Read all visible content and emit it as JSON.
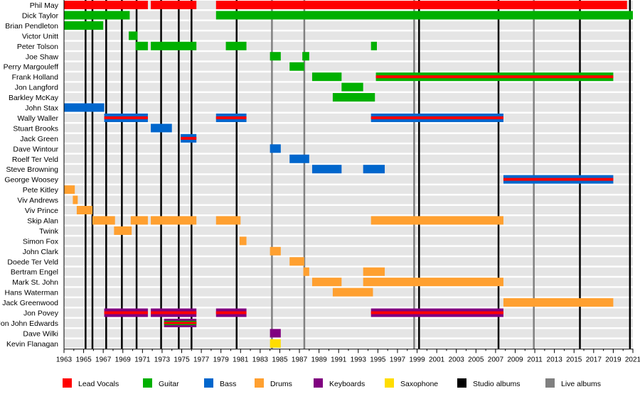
{
  "chart_data": {
    "type": "timeline",
    "xlim": [
      1963,
      2021
    ],
    "x_tick_labels": [
      1963,
      1965,
      1967,
      1969,
      1971,
      1973,
      1975,
      1977,
      1979,
      1981,
      1983,
      1985,
      1987,
      1989,
      1991,
      1993,
      1995,
      1997,
      1999,
      2001,
      2003,
      2005,
      2007,
      2009,
      2011,
      2013,
      2015,
      2017,
      2019,
      2021
    ],
    "colors": {
      "Lead Vocals": "#ff0000",
      "Guitar": "#00b000",
      "Bass": "#0066cc",
      "Drums": "#ffa030",
      "Keyboards": "#800080",
      "Saxophone": "#ffdd00",
      "Studio albums": "#000000",
      "Live albums": "#808080"
    },
    "legend": [
      "Lead Vocals",
      "Guitar",
      "Bass",
      "Drums",
      "Keyboards",
      "Saxophone",
      "Studio albums",
      "Live albums"
    ],
    "legend_position": "bottom",
    "members": [
      {
        "name": "Phil May",
        "spans": [
          {
            "start": 1963,
            "end": 1971.55,
            "roles": [
              "Lead Vocals"
            ]
          },
          {
            "start": 1971.85,
            "end": 1976.5,
            "roles": [
              "Lead Vocals"
            ]
          },
          {
            "start": 1978.5,
            "end": 2020.4,
            "roles": [
              "Lead Vocals"
            ]
          }
        ]
      },
      {
        "name": "Dick Taylor",
        "spans": [
          {
            "start": 1963,
            "end": 1969.7,
            "roles": [
              "Guitar"
            ]
          },
          {
            "start": 1978.5,
            "end": 2021,
            "roles": [
              "Guitar"
            ]
          }
        ]
      },
      {
        "name": "Brian Pendleton",
        "spans": [
          {
            "start": 1963,
            "end": 1967,
            "roles": [
              "Guitar"
            ]
          }
        ]
      },
      {
        "name": "Victor Unitt",
        "spans": [
          {
            "start": 1969.6,
            "end": 1970.5,
            "roles": [
              "Guitar"
            ]
          }
        ]
      },
      {
        "name": "Peter Tolson",
        "spans": [
          {
            "start": 1970.3,
            "end": 1971.55,
            "roles": [
              "Guitar"
            ]
          },
          {
            "start": 1971.85,
            "end": 1976.5,
            "roles": [
              "Guitar"
            ]
          },
          {
            "start": 1979.5,
            "end": 1981.6,
            "roles": [
              "Guitar"
            ]
          },
          {
            "start": 1994.3,
            "end": 1994.9,
            "roles": [
              "Guitar"
            ]
          }
        ]
      },
      {
        "name": "Joe Shaw",
        "spans": [
          {
            "start": 1984,
            "end": 1985.1,
            "roles": [
              "Guitar"
            ]
          },
          {
            "start": 1987.3,
            "end": 1988,
            "roles": [
              "Guitar"
            ]
          }
        ]
      },
      {
        "name": "Perry Margouleff",
        "spans": [
          {
            "start": 1986,
            "end": 1987.5,
            "roles": [
              "Guitar"
            ]
          }
        ]
      },
      {
        "name": "Frank Holland",
        "spans": [
          {
            "start": 1988.3,
            "end": 1991.3,
            "roles": [
              "Guitar"
            ]
          },
          {
            "start": 1994.8,
            "end": 2019,
            "roles": [
              "Guitar",
              "Lead Vocals"
            ]
          }
        ]
      },
      {
        "name": "Jon Langford",
        "spans": [
          {
            "start": 1991.3,
            "end": 1993.5,
            "roles": [
              "Guitar"
            ]
          }
        ]
      },
      {
        "name": "Barkley McKay",
        "spans": [
          {
            "start": 1990.4,
            "end": 1994.7,
            "roles": [
              "Guitar"
            ]
          }
        ]
      },
      {
        "name": "John Stax",
        "spans": [
          {
            "start": 1963,
            "end": 1967.1,
            "roles": [
              "Bass"
            ]
          }
        ]
      },
      {
        "name": "Wally Waller",
        "spans": [
          {
            "start": 1967.1,
            "end": 1971.55,
            "roles": [
              "Bass",
              "Lead Vocals"
            ]
          },
          {
            "start": 1978.5,
            "end": 1981.6,
            "roles": [
              "Bass",
              "Lead Vocals"
            ]
          },
          {
            "start": 1994.3,
            "end": 2007.8,
            "roles": [
              "Bass",
              "Lead Vocals"
            ]
          }
        ]
      },
      {
        "name": "Stuart Brooks",
        "spans": [
          {
            "start": 1971.85,
            "end": 1974,
            "roles": [
              "Bass"
            ]
          }
        ]
      },
      {
        "name": "Jack Green",
        "spans": [
          {
            "start": 1974.9,
            "end": 1976.5,
            "roles": [
              "Bass",
              "Lead Vocals"
            ]
          }
        ]
      },
      {
        "name": "Dave Wintour",
        "spans": [
          {
            "start": 1984,
            "end": 1985.1,
            "roles": [
              "Bass"
            ]
          }
        ]
      },
      {
        "name": "Roelf Ter Veld",
        "spans": [
          {
            "start": 1986,
            "end": 1988,
            "roles": [
              "Bass"
            ]
          }
        ]
      },
      {
        "name": "Steve Browning",
        "spans": [
          {
            "start": 1988.3,
            "end": 1991.3,
            "roles": [
              "Bass"
            ]
          },
          {
            "start": 1993.5,
            "end": 1995.7,
            "roles": [
              "Bass"
            ]
          }
        ]
      },
      {
        "name": "George Woosey",
        "spans": [
          {
            "start": 2007.8,
            "end": 2019,
            "roles": [
              "Bass",
              "Lead Vocals"
            ]
          }
        ]
      },
      {
        "name": "Pete Kitley",
        "spans": [
          {
            "start": 1963,
            "end": 1964.1,
            "roles": [
              "Drums"
            ]
          }
        ]
      },
      {
        "name": "Viv Andrews",
        "spans": [
          {
            "start": 1963.9,
            "end": 1964.4,
            "roles": [
              "Drums"
            ]
          }
        ]
      },
      {
        "name": "Viv Prince",
        "spans": [
          {
            "start": 1964.3,
            "end": 1965.9,
            "roles": [
              "Drums"
            ]
          }
        ]
      },
      {
        "name": "Skip Alan",
        "spans": [
          {
            "start": 1965.9,
            "end": 1968.2,
            "roles": [
              "Drums"
            ]
          },
          {
            "start": 1969.8,
            "end": 1971.55,
            "roles": [
              "Drums"
            ]
          },
          {
            "start": 1971.85,
            "end": 1976.5,
            "roles": [
              "Drums"
            ]
          },
          {
            "start": 1978.5,
            "end": 1981,
            "roles": [
              "Drums"
            ]
          },
          {
            "start": 1994.3,
            "end": 2007.8,
            "roles": [
              "Drums"
            ]
          }
        ]
      },
      {
        "name": "Twink",
        "spans": [
          {
            "start": 1968.1,
            "end": 1969.9,
            "roles": [
              "Drums"
            ]
          }
        ]
      },
      {
        "name": "Simon Fox",
        "spans": [
          {
            "start": 1980.9,
            "end": 1981.6,
            "roles": [
              "Drums"
            ]
          }
        ]
      },
      {
        "name": "John Clark",
        "spans": [
          {
            "start": 1984,
            "end": 1985.1,
            "roles": [
              "Drums"
            ]
          }
        ]
      },
      {
        "name": "Doede Ter Veld",
        "spans": [
          {
            "start": 1986,
            "end": 1987.5,
            "roles": [
              "Drums"
            ]
          }
        ]
      },
      {
        "name": "Bertram Engel",
        "spans": [
          {
            "start": 1987.4,
            "end": 1988,
            "roles": [
              "Drums"
            ]
          },
          {
            "start": 1993.5,
            "end": 1995.7,
            "roles": [
              "Drums"
            ]
          }
        ]
      },
      {
        "name": "Mark St. John",
        "spans": [
          {
            "start": 1988.3,
            "end": 1991.3,
            "roles": [
              "Drums"
            ]
          },
          {
            "start": 1993.5,
            "end": 2007.8,
            "roles": [
              "Drums"
            ]
          }
        ]
      },
      {
        "name": "Hans Waterman",
        "spans": [
          {
            "start": 1990.4,
            "end": 1994.5,
            "roles": [
              "Drums"
            ]
          }
        ]
      },
      {
        "name": "Jack Greenwood",
        "spans": [
          {
            "start": 2007.8,
            "end": 2019,
            "roles": [
              "Drums"
            ]
          }
        ]
      },
      {
        "name": "Jon Povey",
        "spans": [
          {
            "start": 1967.1,
            "end": 1971.55,
            "roles": [
              "Keyboards",
              "Lead Vocals"
            ]
          },
          {
            "start": 1971.85,
            "end": 1976.5,
            "roles": [
              "Keyboards",
              "Lead Vocals"
            ]
          },
          {
            "start": 1978.5,
            "end": 1981.6,
            "roles": [
              "Keyboards",
              "Lead Vocals"
            ]
          },
          {
            "start": 1994.3,
            "end": 2007.8,
            "roles": [
              "Keyboards",
              "Lead Vocals"
            ]
          }
        ]
      },
      {
        "name": "Jon John Edwards",
        "spans": [
          {
            "start": 1973.2,
            "end": 1976.5,
            "roles": [
              "Keyboards",
              "Guitar",
              "Lead Vocals"
            ]
          }
        ]
      },
      {
        "name": "Dave Wilki",
        "spans": [
          {
            "start": 1984,
            "end": 1985.1,
            "roles": [
              "Keyboards"
            ]
          }
        ]
      },
      {
        "name": "Kevin Flanagan",
        "spans": [
          {
            "start": 1984,
            "end": 1985.1,
            "roles": [
              "Saxophone"
            ]
          }
        ]
      }
    ],
    "studio_albums": [
      1965.2,
      1965.9,
      1967.3,
      1968.9,
      1970.4,
      1972.9,
      1974.7,
      1976.0,
      1980.6,
      1999.2,
      2007.3,
      2015.6,
      2020.7
    ],
    "live_albums": [
      1984.2,
      1987.5,
      1998.7,
      2010.9
    ]
  }
}
